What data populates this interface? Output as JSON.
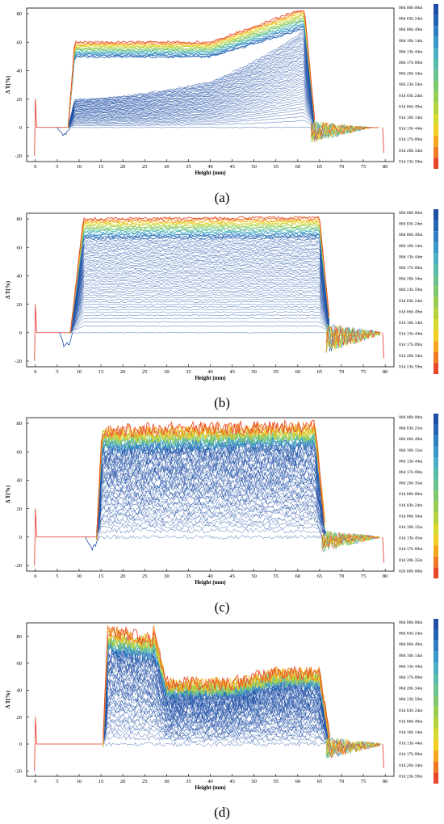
{
  "time_labels": {
    "a": [
      "00d 00h 00m",
      "00d 03h 24m",
      "00d 06h 49m",
      "00d 10h 14m",
      "00d 13h 44m",
      "00d 17h 09m",
      "00d 20h 34m",
      "00d 23h 59m",
      "01d 03h 24m",
      "01d 06h 49m",
      "01d 10h 14m",
      "01d 13h 44m",
      "01d 17h 09m",
      "01d 20h 34m",
      "01d 23h 59m"
    ],
    "b": [
      "00d 00h 00m",
      "00d 03h 24m",
      "00d 06h 49m",
      "00d 10h 14m",
      "00d 13h 44m",
      "00d 17h 09m",
      "00d 20h 34m",
      "00d 23h 59m",
      "01d 03h 24m",
      "01d 06h 49m",
      "01d 10h 14m",
      "01d 13h 44m",
      "01d 17h 09m",
      "01d 20h 34m",
      "01d 23h 59m"
    ],
    "c": [
      "00d 00h 00m",
      "00d 03h 25m",
      "00d 06h 49m",
      "00d 10h 15m",
      "00d 13h 44m",
      "00d 17h 09m",
      "00d 20h 35m",
      "01d 00h 00m",
      "01d 03h 24m",
      "01d 06h 50m",
      "01d 10h 15m",
      "01d 13h 45m",
      "01d 17h 09m",
      "01d 20h 35m",
      "02d 00h 00m"
    ],
    "d": [
      "00d 00h 00m",
      "00d 03h 24m",
      "00d 06h 49m",
      "00d 10h 14m",
      "00d 13h 44m",
      "00d 17h 09m",
      "00d 20h 34m",
      "00d 23h 59m",
      "01d 03h 24m",
      "01d 06h 49m",
      "01d 10h 14m",
      "01d 13h 44m",
      "01d 17h 09m",
      "01d 20h 34m",
      "01d 23h 59m"
    ]
  },
  "colors": [
    "#1f4fa6",
    "#2564b2",
    "#2f7fc0",
    "#3a98c8",
    "#4aafc4",
    "#58bca8",
    "#6cc28f",
    "#7fc86d",
    "#99cd52",
    "#b4d23c",
    "#d6d82c",
    "#f1cf22",
    "#f6a520",
    "#f07a24",
    "#e8472a"
  ],
  "chart_data": [
    {
      "type": "line",
      "panel": "(a)",
      "xlabel": "Height (mm)",
      "ylabel": "Δ T(%)",
      "xlim": [
        -2,
        82
      ],
      "ylim": [
        -24,
        84
      ],
      "xticks": [
        0,
        5,
        10,
        15,
        20,
        25,
        30,
        35,
        40,
        45,
        50,
        55,
        60,
        65,
        70,
        75,
        80
      ],
      "yticks": [
        -20,
        0,
        20,
        40,
        60,
        80
      ],
      "series_count": 15,
      "legend": "right-colorbar",
      "shape": {
        "start": 7.5,
        "end": 61.5,
        "top": 60,
        "top_end": 80,
        "rise": [
          40,
          58
        ],
        "ramp": 1.5,
        "noise": 1.2,
        "pre": [
          -6,
          0
        ],
        "post": [
          -12,
          4
        ]
      }
    },
    {
      "type": "line",
      "panel": "(b)",
      "xlabel": "Height (mm)",
      "ylabel": "Δ T(%)",
      "xlim": [
        -2,
        82
      ],
      "ylim": [
        -24,
        84
      ],
      "xticks": [
        0,
        5,
        10,
        15,
        20,
        25,
        30,
        35,
        40,
        45,
        50,
        55,
        60,
        65,
        70,
        75,
        80
      ],
      "yticks": [
        -20,
        0,
        20,
        40,
        60,
        80
      ],
      "series_count": 15,
      "legend": "right-colorbar",
      "shape": {
        "start": 8,
        "end": 65,
        "top": 80,
        "top_end": 81,
        "rise": [
          0,
          0
        ],
        "ramp": 3,
        "noise": 1.5,
        "pre": [
          -12,
          0
        ],
        "post": [
          -15,
          6
        ]
      }
    },
    {
      "type": "line",
      "panel": "(c)",
      "xlabel": "Height (mm)",
      "ylabel": "Δ T(%)",
      "xlim": [
        -2,
        82
      ],
      "ylim": [
        -24,
        84
      ],
      "xticks": [
        0,
        5,
        10,
        15,
        20,
        25,
        30,
        35,
        40,
        45,
        50,
        55,
        60,
        65,
        70,
        75,
        80
      ],
      "yticks": [
        -20,
        0,
        20,
        40,
        60,
        80
      ],
      "series_count": 15,
      "legend": "right-colorbar",
      "shape": {
        "start": 14,
        "end": 64,
        "top": 75,
        "top_end": 78,
        "rise": [
          0,
          0
        ],
        "ramp": 1.2,
        "noise": 7,
        "pre": [
          -10,
          0
        ],
        "post": [
          -10,
          6
        ]
      }
    },
    {
      "type": "line",
      "panel": "(d)",
      "xlabel": "Height (mm)",
      "ylabel": "Δ T(%)",
      "xlim": [
        -2,
        82
      ],
      "ylim": [
        -24,
        90
      ],
      "xticks": [
        0,
        5,
        10,
        15,
        20,
        25,
        30,
        35,
        40,
        45,
        50,
        55,
        60,
        65,
        70,
        75,
        80
      ],
      "yticks": [
        -20,
        0,
        20,
        40,
        60,
        80
      ],
      "series_count": 15,
      "legend": "right-colorbar",
      "shape": {
        "start": 15.5,
        "end": 65,
        "top": 85,
        "top_end": 55,
        "rise": [
          0,
          0
        ],
        "ramp": 1.0,
        "noise": 8,
        "step": [
          27,
          45
        ],
        "pre": [
          0,
          0
        ],
        "post": [
          -12,
          5
        ]
      }
    }
  ],
  "panel_labels": [
    "(a)",
    "(b)",
    "(c)",
    "(d)"
  ]
}
